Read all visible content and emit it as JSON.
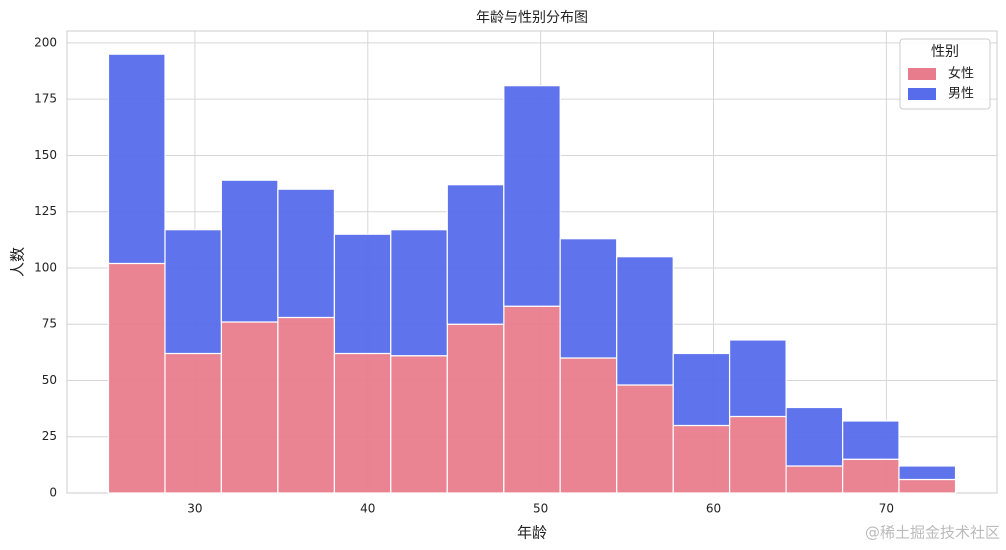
{
  "chart_data": {
    "type": "histogram",
    "stacked": true,
    "title": "年龄与性别分布图",
    "x_label": "年龄",
    "y_label": "人数",
    "bins": [
      25,
      28.27,
      31.53,
      34.8,
      38.07,
      41.33,
      44.6,
      47.87,
      51.13,
      54.4,
      57.67,
      60.93,
      64.2,
      67.47,
      70.73,
      74
    ],
    "series": [
      {
        "name": "女性",
        "color": "#e97c8c",
        "values": [
          102,
          62,
          76,
          78,
          62,
          61,
          75,
          83,
          60,
          48,
          30,
          34,
          12,
          15,
          6
        ]
      },
      {
        "name": "男性",
        "color": "#566ceb",
        "values": [
          93,
          55,
          63,
          57,
          53,
          56,
          62,
          98,
          53,
          57,
          32,
          34,
          26,
          17,
          6
        ]
      }
    ],
    "legend_title": "性别",
    "legend_position": "upper right",
    "xlim": [
      22.6,
      76.4
    ],
    "xticks": [
      30,
      40,
      50,
      60,
      70
    ],
    "ylim": [
      0,
      205.3
    ],
    "yticks": [
      0,
      25,
      50,
      75,
      100,
      125,
      150,
      175,
      200
    ],
    "grid": true,
    "watermark": "@稀土掘金技术社区"
  }
}
